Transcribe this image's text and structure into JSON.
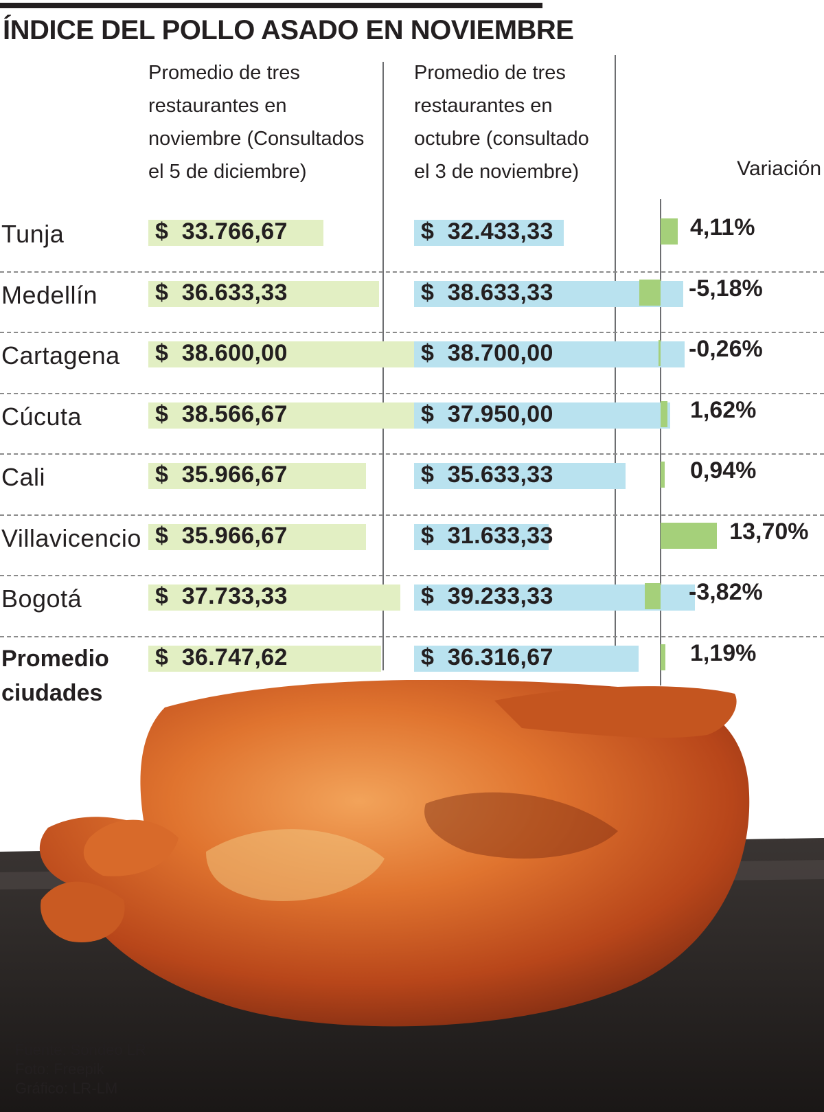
{
  "title": "ÍNDICE DEL POLLO ASADO EN NOVIEMBRE",
  "headers": {
    "november": "Promedio de tres\nrestaurantes en\nnoviembre (Consultados\nel 5 de diciembre)",
    "october": "Promedio de tres\nrestaurantes en\noctubre (consultado\nel 3 de noviembre)",
    "variation": "Variación"
  },
  "chart_data": {
    "type": "table",
    "currency": "$",
    "columns": [
      "Promedio de tres restaurantes en noviembre (Consultados el 5 de diciembre)",
      "Promedio de tres restaurantes en octubre (consultado el 3 de noviembre)",
      "Variación"
    ],
    "rows": [
      {
        "city": "Tunja",
        "november": 33766.67,
        "october": 32433.33,
        "variation": 4.11,
        "november_label": "33.766,67",
        "october_label": "32.433,33",
        "variation_label": "4,11%"
      },
      {
        "city": "Medellín",
        "november": 36633.33,
        "october": 38633.33,
        "variation": -5.18,
        "november_label": "36.633,33",
        "october_label": "38.633,33",
        "variation_label": "-5,18%"
      },
      {
        "city": "Cartagena",
        "november": 38600.0,
        "october": 38700.0,
        "variation": -0.26,
        "november_label": "38.600,00",
        "october_label": "38.700,00",
        "variation_label": "-0,26%"
      },
      {
        "city": "Cúcuta",
        "november": 38566.67,
        "october": 37950.0,
        "variation": 1.62,
        "november_label": "38.566,67",
        "october_label": "37.950,00",
        "variation_label": "1,62%"
      },
      {
        "city": "Cali",
        "november": 35966.67,
        "october": 35633.33,
        "variation": 0.94,
        "november_label": "35.966,67",
        "october_label": "35.633,33",
        "variation_label": "0,94%"
      },
      {
        "city": "Villavicencio",
        "november": 35966.67,
        "october": 31633.33,
        "variation": 13.7,
        "november_label": "35.966,67",
        "october_label": "31.633,33",
        "variation_label": "13,70%"
      },
      {
        "city": "Bogotá",
        "november": 37733.33,
        "october": 39233.33,
        "variation": -3.82,
        "november_label": "37.733,33",
        "october_label": "39.233,33",
        "variation_label": "-3,82%"
      },
      {
        "city": "Promedio\nciudades",
        "november": 36747.62,
        "october": 36316.67,
        "variation": 1.19,
        "november_label": "36.747,62",
        "october_label": "36.316,67",
        "variation_label": "1,19%",
        "is_average": true
      }
    ],
    "colors": {
      "november": "#e2efc3",
      "october": "#b9e2ef",
      "variation": "#a5d07a"
    }
  },
  "credits": [
    "Fuente: Sondeo LR",
    "Foto: Freepik",
    "Gráfico: LR-LM"
  ]
}
